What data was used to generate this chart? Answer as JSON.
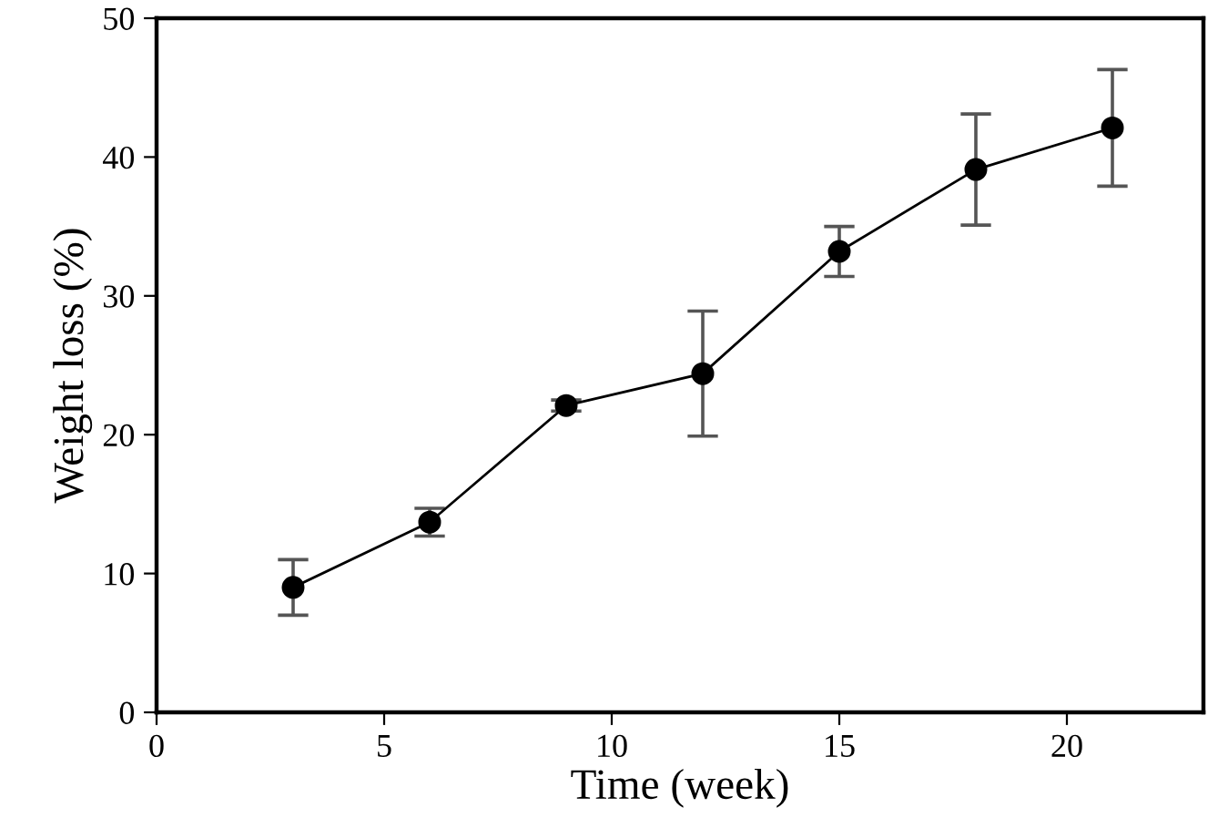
{
  "chart_data": {
    "type": "line",
    "xlabel": "Time (week)",
    "ylabel": "Weight loss (%)",
    "x": [
      3,
      6,
      9,
      12,
      15,
      18,
      21
    ],
    "series": [
      {
        "color": "#000000",
        "values": [
          9.0,
          13.7,
          22.1,
          24.4,
          33.2,
          39.1,
          42.1
        ],
        "errors": [
          2.0,
          1.0,
          0.4,
          4.5,
          1.8,
          4.0,
          4.2
        ]
      }
    ],
    "xlim": [
      0,
      23
    ],
    "xticks": [
      0,
      5,
      10,
      15,
      20
    ],
    "ylim": [
      0,
      50
    ],
    "yticks": [
      0,
      10,
      20,
      30,
      40,
      50
    ],
    "marker": "circle",
    "line_style": "solid",
    "grid": false,
    "legend": false
  }
}
